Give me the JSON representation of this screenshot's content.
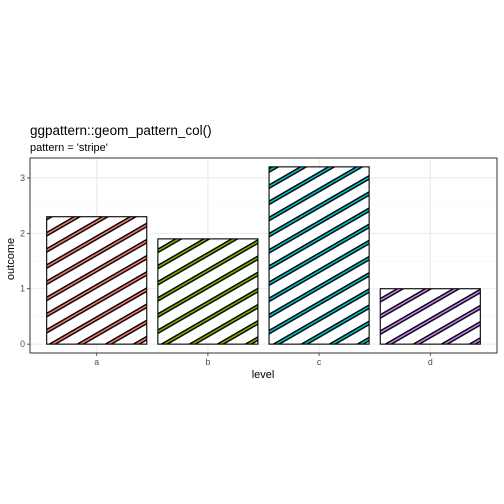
{
  "chart_data": {
    "type": "bar",
    "title": "ggpattern::geom_pattern_col()",
    "subtitle": "pattern = 'stripe'",
    "xlabel": "level",
    "ylabel": "outcome",
    "categories": [
      "a",
      "b",
      "c",
      "d"
    ],
    "values": [
      2.3,
      1.9,
      3.2,
      1.0
    ],
    "yticks": [
      0,
      1,
      2,
      3
    ],
    "ylim": [
      -0.16,
      3.36
    ],
    "grid": true,
    "legend": "none",
    "pattern": "stripe",
    "colors": {
      "fills": [
        "#F8766D",
        "#7CAE00",
        "#00BFC4",
        "#C77CFF"
      ],
      "stripe": "#000000",
      "outline": "#000000",
      "grid_major": "#ebebeb",
      "grid_minor": "#f5f5f5",
      "panel_border": "#333333",
      "tick_text": "#4d4d4d"
    }
  }
}
